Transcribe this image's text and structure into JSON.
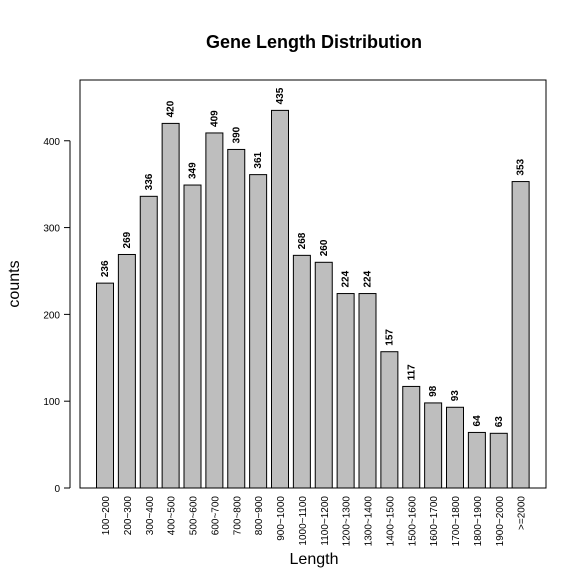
{
  "chart_data": {
    "type": "bar",
    "title": "Gene Length Distribution",
    "xlabel": "Length",
    "ylabel": "counts",
    "categories": [
      "100~200",
      "200~300",
      "300~400",
      "400~500",
      "500~600",
      "600~700",
      "700~800",
      "800~900",
      "900~1000",
      "1000~1100",
      "1100~1200",
      "1200~1300",
      "1300~1400",
      "1400~1500",
      "1500~1600",
      "1600~1700",
      "1700~1800",
      "1800~1900",
      "1900~2000",
      ">=2000"
    ],
    "values": [
      236,
      269,
      336,
      420,
      349,
      409,
      390,
      361,
      435,
      268,
      260,
      224,
      224,
      157,
      117,
      98,
      93,
      64,
      63,
      353
    ],
    "data_labels": [
      "236",
      "269",
      "336",
      "420",
      "349",
      "409",
      "390",
      "361",
      "435",
      "268",
      "260",
      "224",
      "224",
      "157",
      "117",
      "98",
      "93",
      "64",
      "63",
      "353"
    ],
    "ylim": [
      0,
      470
    ],
    "yticks": [
      0,
      100,
      200,
      300,
      400
    ],
    "ytick_labels": [
      "0",
      "100",
      "200",
      "300",
      "400"
    ],
    "grid": false,
    "legend": "none",
    "bar_color": "#bebebe",
    "bar_edge_color": "#000000"
  }
}
